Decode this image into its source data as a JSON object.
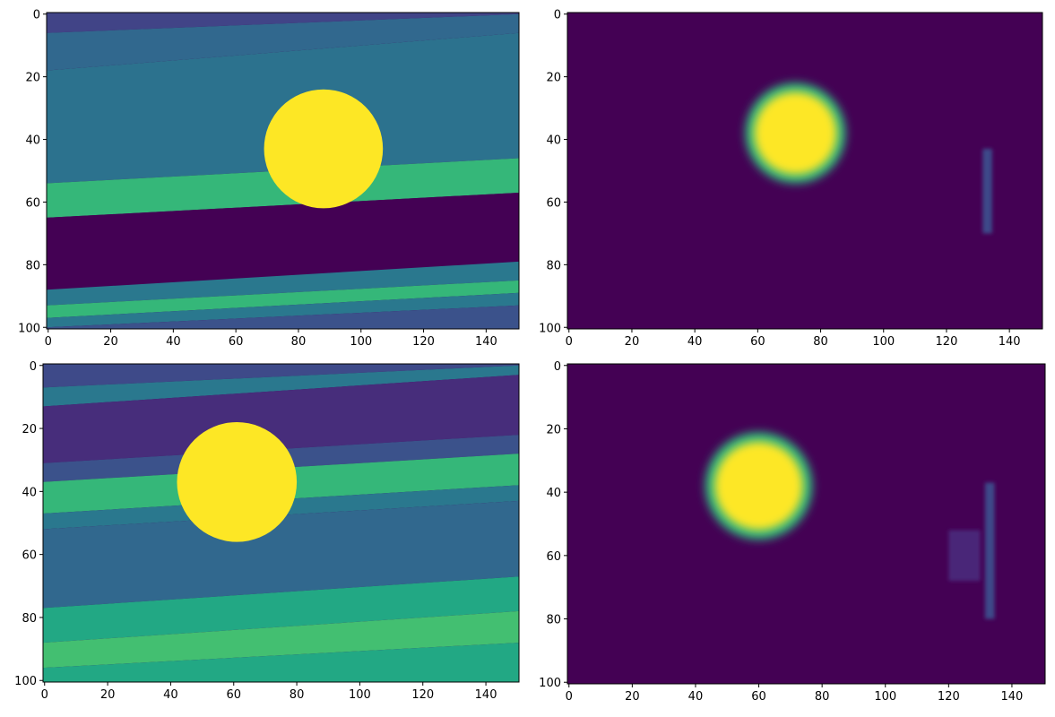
{
  "chart_data": [
    {
      "type": "image",
      "xlim": [
        -0.5,
        150.5
      ],
      "ylim": [
        100.5,
        -0.5
      ],
      "xticks": [
        0,
        20,
        40,
        60,
        80,
        100,
        120,
        140
      ],
      "yticks": [
        0,
        20,
        40,
        60,
        80,
        100
      ],
      "background": "#440154",
      "bands": [
        {
          "left": -0.5,
          "right": -0.5,
          "color": "#414487"
        },
        {
          "left": 6,
          "right": 0,
          "color": "#31688e"
        },
        {
          "left": 18,
          "right": 6,
          "color": "#2c728e"
        },
        {
          "left": 54,
          "right": 46,
          "color": "#35b779"
        },
        {
          "left": 65,
          "right": 57,
          "color": "#440154"
        },
        {
          "left": 88,
          "right": 79,
          "color": "#2a788e"
        },
        {
          "left": 93,
          "right": 85,
          "color": "#35b779"
        },
        {
          "left": 97,
          "right": 89,
          "color": "#2a788e"
        },
        {
          "left": 100,
          "right": 93,
          "color": "#3b528b"
        }
      ],
      "discs": [
        {
          "x": 88,
          "y": 43,
          "r": 19,
          "color": "#fde725"
        }
      ],
      "blobs": [],
      "streaks": []
    },
    {
      "type": "image",
      "xlim": [
        -0.5,
        150.5
      ],
      "ylim": [
        100.5,
        -0.5
      ],
      "xticks": [
        0,
        20,
        40,
        60,
        80,
        100,
        120,
        140
      ],
      "yticks": [
        0,
        20,
        40,
        60,
        80,
        100
      ],
      "background": "#440154",
      "bands": [],
      "discs": [],
      "blobs": [
        {
          "x": 72,
          "y": 38,
          "r": 16,
          "color": "#fde725",
          "halo": "#2fb47c"
        }
      ],
      "streaks": [
        {
          "x": 133,
          "y": [
            43,
            70
          ],
          "width": 3,
          "color": "#3e4a89"
        }
      ]
    },
    {
      "type": "image",
      "xlim": [
        -0.5,
        150.5
      ],
      "ylim": [
        100.5,
        -0.5
      ],
      "xticks": [
        0,
        20,
        40,
        60,
        80,
        100,
        120,
        140
      ],
      "yticks": [
        0,
        20,
        40,
        60,
        80,
        100
      ],
      "background": "#440154",
      "bands": [
        {
          "left": -0.5,
          "right": -0.5,
          "color": "#3e4a89"
        },
        {
          "left": 7,
          "right": 0,
          "color": "#2a788e"
        },
        {
          "left": 13,
          "right": 3,
          "color": "#472d7b"
        },
        {
          "left": 31,
          "right": 22,
          "color": "#3b528b"
        },
        {
          "left": 37,
          "right": 28,
          "color": "#35b779"
        },
        {
          "left": 47,
          "right": 38,
          "color": "#2a788e"
        },
        {
          "left": 52,
          "right": 43,
          "color": "#31688e"
        },
        {
          "left": 77,
          "right": 67,
          "color": "#22a884"
        },
        {
          "left": 88,
          "right": 78,
          "color": "#43bf71"
        },
        {
          "left": 96,
          "right": 88,
          "color": "#22a884"
        }
      ],
      "discs": [
        {
          "x": 61,
          "y": 37,
          "r": 19,
          "color": "#fde725"
        }
      ],
      "blobs": [],
      "streaks": []
    },
    {
      "type": "image",
      "xlim": [
        -0.5,
        150.5
      ],
      "ylim": [
        100.5,
        -0.5
      ],
      "xticks": [
        0,
        20,
        40,
        60,
        80,
        100,
        120,
        140
      ],
      "yticks": [
        0,
        20,
        40,
        60,
        80,
        100
      ],
      "background": "#440154",
      "bands": [],
      "discs": [],
      "blobs": [
        {
          "x": 60,
          "y": 38,
          "r": 17,
          "color": "#fde725",
          "halo": "#2fb47c"
        }
      ],
      "streaks": [
        {
          "x": 133,
          "y": [
            37,
            80
          ],
          "width": 3,
          "color": "#3e4a89"
        },
        {
          "x": 125,
          "y": [
            52,
            68
          ],
          "width": 10,
          "color": "#482878"
        }
      ]
    }
  ]
}
